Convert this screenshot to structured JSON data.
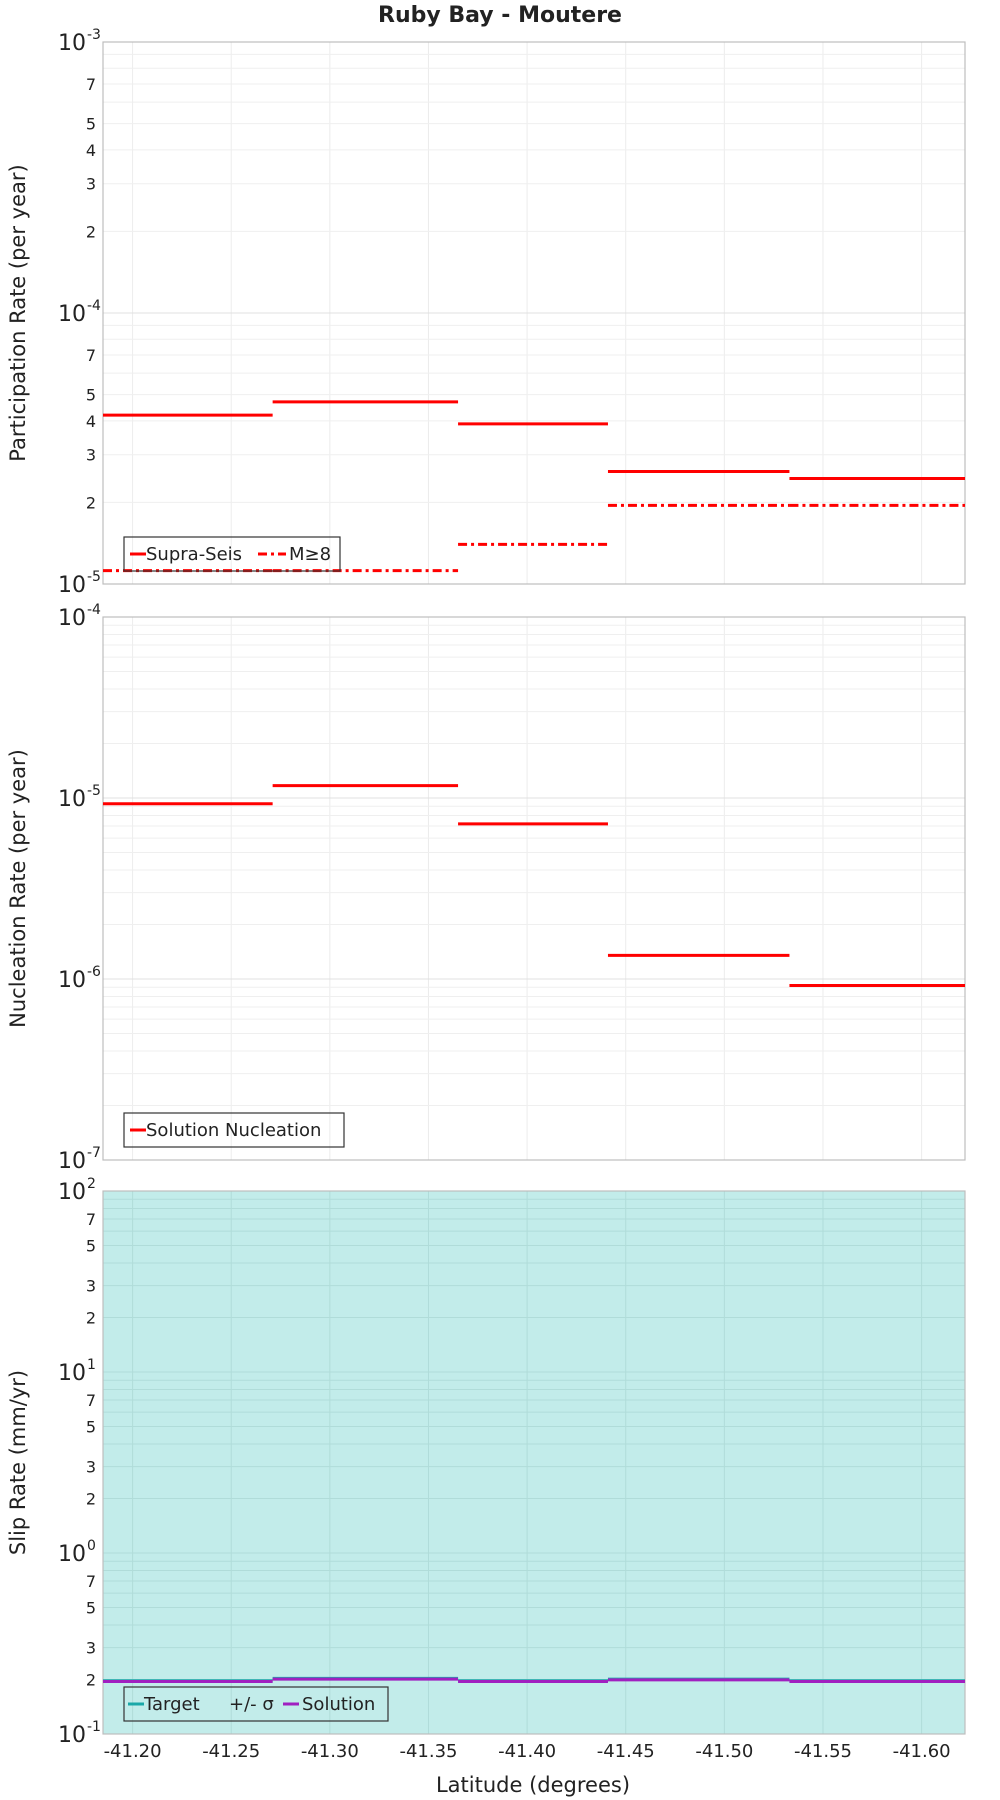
{
  "chart_data": {
    "title": "Ruby Bay - Moutere",
    "xlabel": "Latitude (degrees)",
    "x_ticks": [
      "-41.20",
      "-41.25",
      "-41.30",
      "-41.35",
      "-41.40",
      "-41.45",
      "-41.50",
      "-41.55",
      "-41.60"
    ],
    "x_tick_values": [
      -41.2,
      -41.25,
      -41.3,
      -41.35,
      -41.4,
      -41.45,
      -41.5,
      -41.55,
      -41.6
    ],
    "xlim": [
      -41.185,
      -41.622
    ],
    "grid": true,
    "panels": [
      {
        "type": "step-line",
        "ylabel": "Participation Rate (per year)",
        "yscale": "log",
        "ylim": [
          1e-05,
          0.001
        ],
        "major_ticks": [
          {
            "base": "10",
            "exp": "-3"
          },
          {
            "base": "10",
            "exp": "-4"
          },
          {
            "base": "10",
            "exp": "-5"
          }
        ],
        "minor_tick_labels": [
          "7",
          "5",
          "4",
          "3",
          "2",
          "7",
          "5",
          "4",
          "3",
          "2"
        ],
        "legend_position": "bottom-left",
        "series": [
          {
            "name": "Supra-Seis",
            "color": "#ff0000",
            "style": "solid",
            "segments": [
              {
                "x0": -41.185,
                "x1": -41.271,
                "y": 4.2e-05
              },
              {
                "x0": -41.271,
                "x1": -41.365,
                "y": 4.7e-05
              },
              {
                "x0": -41.365,
                "x1": -41.441,
                "y": 3.9e-05
              },
              {
                "x0": -41.441,
                "x1": -41.533,
                "y": 2.6e-05
              },
              {
                "x0": -41.533,
                "x1": -41.622,
                "y": 2.45e-05
              }
            ]
          },
          {
            "name": "M≥8",
            "color": "#ff0000",
            "style": "dash-dot",
            "segments": [
              {
                "x0": -41.185,
                "x1": -41.271,
                "y": 1.12e-05
              },
              {
                "x0": -41.271,
                "x1": -41.365,
                "y": 1.12e-05
              },
              {
                "x0": -41.365,
                "x1": -41.441,
                "y": 1.4e-05
              },
              {
                "x0": -41.441,
                "x1": -41.533,
                "y": 1.95e-05
              },
              {
                "x0": -41.533,
                "x1": -41.622,
                "y": 1.95e-05
              }
            ]
          }
        ]
      },
      {
        "type": "step-line",
        "ylabel": "Nucleation Rate (per year)",
        "yscale": "log",
        "ylim": [
          1e-07,
          0.0001
        ],
        "major_ticks": [
          {
            "base": "10",
            "exp": "-4"
          },
          {
            "base": "10",
            "exp": "-5"
          },
          {
            "base": "10",
            "exp": "-6"
          },
          {
            "base": "10",
            "exp": "-7"
          }
        ],
        "minor_tick_labels": [],
        "legend_position": "bottom-left",
        "series": [
          {
            "name": "Solution Nucleation",
            "color": "#ff0000",
            "style": "solid",
            "segments": [
              {
                "x0": -41.185,
                "x1": -41.271,
                "y": 9.3e-06
              },
              {
                "x0": -41.271,
                "x1": -41.365,
                "y": 1.17e-05
              },
              {
                "x0": -41.365,
                "x1": -41.441,
                "y": 7.2e-06
              },
              {
                "x0": -41.441,
                "x1": -41.533,
                "y": 1.35e-06
              },
              {
                "x0": -41.533,
                "x1": -41.622,
                "y": 9.2e-07
              }
            ]
          }
        ]
      },
      {
        "type": "step-line",
        "ylabel": "Slip Rate (mm/yr)",
        "yscale": "log",
        "ylim": [
          0.1,
          100
        ],
        "major_ticks": [
          {
            "base": "10",
            "exp": "2"
          },
          {
            "base": "10",
            "exp": "1"
          },
          {
            "base": "10",
            "exp": "0"
          },
          {
            "base": "10",
            "exp": "-1"
          }
        ],
        "minor_tick_labels": [
          "7",
          "5",
          "3",
          "2",
          "7",
          "5",
          "3",
          "2",
          "7",
          "5",
          "3",
          "2"
        ],
        "legend_position": "bottom-left",
        "band": {
          "name": "+/- σ",
          "color": "#c2ecea",
          "ylow": 0.1,
          "yhigh": 100
        },
        "series": [
          {
            "name": "Target",
            "color": "#1aa8a8",
            "style": "solid",
            "segments": [
              {
                "x0": -41.185,
                "x1": -41.271,
                "y": 0.197
              },
              {
                "x0": -41.271,
                "x1": -41.365,
                "y": 0.203
              },
              {
                "x0": -41.365,
                "x1": -41.441,
                "y": 0.197
              },
              {
                "x0": -41.441,
                "x1": -41.533,
                "y": 0.201
              },
              {
                "x0": -41.533,
                "x1": -41.622,
                "y": 0.197
              }
            ]
          },
          {
            "name": "Solution",
            "color": "#a020c0",
            "style": "solid",
            "segments": [
              {
                "x0": -41.185,
                "x1": -41.271,
                "y": 0.195
              },
              {
                "x0": -41.271,
                "x1": -41.365,
                "y": 0.201
              },
              {
                "x0": -41.365,
                "x1": -41.441,
                "y": 0.195
              },
              {
                "x0": -41.441,
                "x1": -41.533,
                "y": 0.199
              },
              {
                "x0": -41.533,
                "x1": -41.622,
                "y": 0.195
              }
            ]
          }
        ]
      }
    ]
  }
}
